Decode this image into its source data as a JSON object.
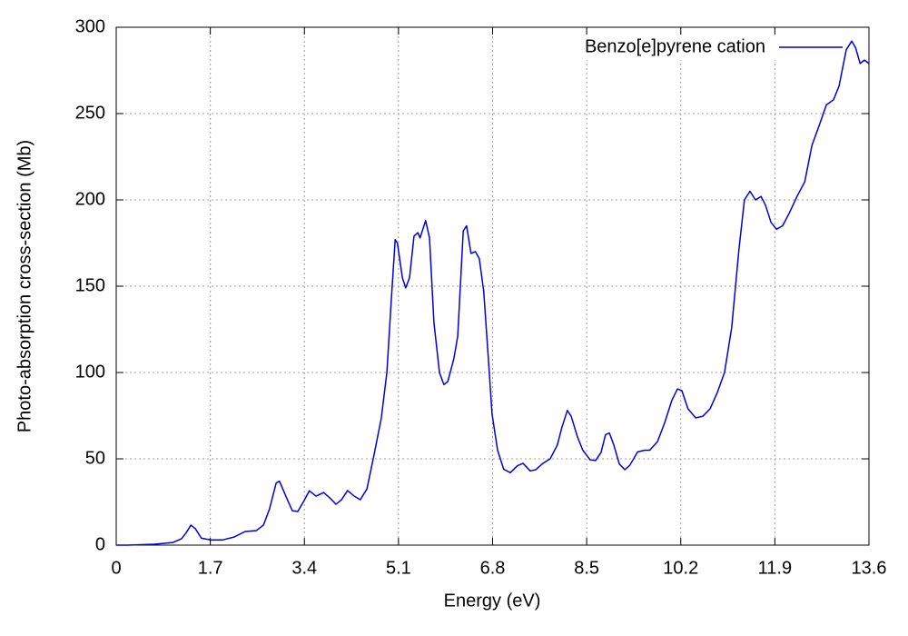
{
  "chart_data": {
    "type": "line",
    "xlabel": "Energy (eV)",
    "ylabel": "Photo-absorption cross-section (Mb)",
    "xlim": [
      0,
      13.6
    ],
    "ylim": [
      0,
      300
    ],
    "xticks": [
      0,
      1.7,
      3.4,
      5.1,
      6.8,
      8.5,
      10.2,
      11.9,
      13.6
    ],
    "yticks": [
      0,
      50,
      100,
      150,
      200,
      250,
      300
    ],
    "grid": true,
    "legend": "upper right",
    "x": [
      0,
      0.2,
      0.69,
      1.02,
      1.18,
      1.26,
      1.35,
      1.43,
      1.54,
      1.71,
      1.92,
      2.13,
      2.33,
      2.53,
      2.66,
      2.77,
      2.89,
      2.95,
      3.07,
      3.18,
      3.28,
      3.38,
      3.49,
      3.61,
      3.75,
      3.87,
      3.97,
      4.07,
      4.18,
      4.3,
      4.41,
      4.53,
      4.66,
      4.79,
      4.89,
      4.97,
      5.04,
      5.08,
      5.17,
      5.23,
      5.3,
      5.38,
      5.45,
      5.49,
      5.59,
      5.66,
      5.74,
      5.84,
      5.92,
      5.99,
      6.1,
      6.17,
      6.27,
      6.33,
      6.41,
      6.49,
      6.56,
      6.64,
      6.73,
      6.79,
      6.89,
      7.0,
      7.12,
      7.25,
      7.35,
      7.48,
      7.58,
      7.71,
      7.84,
      7.97,
      8.05,
      8.15,
      8.22,
      8.33,
      8.43,
      8.56,
      8.66,
      8.76,
      8.84,
      8.91,
      8.99,
      9.09,
      9.19,
      9.28,
      9.42,
      9.55,
      9.64,
      9.78,
      9.91,
      10.04,
      10.14,
      10.22,
      10.33,
      10.47,
      10.6,
      10.73,
      10.86,
      10.99,
      11.12,
      11.25,
      11.35,
      11.45,
      11.55,
      11.65,
      11.73,
      11.83,
      11.93,
      12.04,
      12.17,
      12.3,
      12.44,
      12.57,
      12.7,
      12.83,
      12.96,
      13.06,
      13.19,
      13.29,
      13.36,
      13.44,
      13.52,
      13.6
    ],
    "series": [
      {
        "name": "Benzo[e]pyrene cation",
        "color": "#0000dd",
        "values": [
          0,
          0,
          0.5,
          1.5,
          3.7,
          7,
          11.6,
          9.5,
          4,
          3,
          3,
          4.7,
          7.9,
          8.4,
          11.6,
          21,
          36,
          37,
          28,
          20,
          19.5,
          25,
          31.5,
          28.4,
          30.5,
          27,
          23.7,
          26.3,
          31.6,
          28.4,
          26.3,
          32.6,
          52.6,
          73.7,
          100,
          142,
          177,
          175,
          155,
          149,
          155,
          179,
          181,
          178,
          188,
          178,
          129,
          100,
          93,
          94.7,
          108,
          121,
          182,
          185,
          169,
          170,
          166,
          147,
          105,
          76,
          55,
          44,
          42,
          46,
          47.4,
          43,
          43.7,
          47.4,
          50,
          58,
          68,
          78,
          74.7,
          63,
          55,
          49.5,
          49,
          53.7,
          64,
          65,
          58,
          47,
          43.7,
          46.3,
          54,
          55,
          55,
          60,
          71,
          84,
          90.5,
          89.5,
          79,
          73.7,
          74.7,
          79,
          88.4,
          100,
          126,
          171,
          200,
          205,
          200,
          202,
          197,
          187,
          183,
          185,
          193,
          202,
          210.5,
          231.6,
          243,
          255,
          258,
          266,
          287,
          292,
          288,
          279,
          281,
          279
        ]
      }
    ]
  }
}
